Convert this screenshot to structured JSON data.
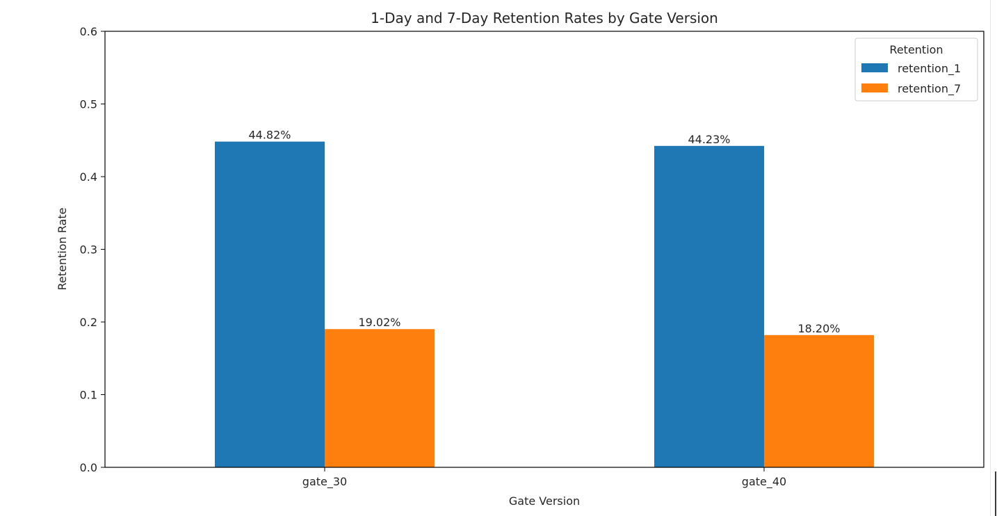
{
  "chart_data": {
    "type": "bar",
    "title": "1-Day and 7-Day Retention Rates by Gate Version",
    "xlabel": "Gate Version",
    "ylabel": "Retention Rate",
    "categories": [
      "gate_30",
      "gate_40"
    ],
    "series": [
      {
        "name": "retention_1",
        "color": "#1f77b4",
        "values": [
          0.4482,
          0.4423
        ],
        "labels": [
          "44.82%",
          "44.23%"
        ]
      },
      {
        "name": "retention_7",
        "color": "#ff7f0e",
        "values": [
          0.1902,
          0.182
        ],
        "labels": [
          "19.02%",
          "18.20%"
        ]
      }
    ],
    "ylim": [
      0,
      0.6
    ],
    "yticks": [
      "0.0",
      "0.1",
      "0.2",
      "0.3",
      "0.4",
      "0.5",
      "0.6"
    ],
    "legend": {
      "title": "Retention",
      "placement": "top-right"
    },
    "grid": false
  }
}
